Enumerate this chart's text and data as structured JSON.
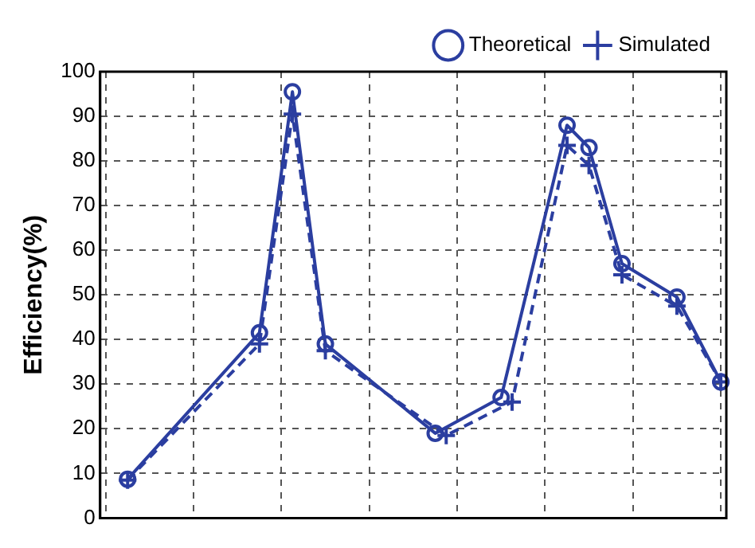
{
  "chart_data": {
    "type": "line",
    "ylabel": "Efficiency(%)",
    "categories": [
      null,
      null,
      null,
      null,
      null,
      null,
      null,
      null,
      null,
      null,
      null,
      null,
      null,
      null,
      null,
      null,
      null,
      null,
      null,
      null,
      null,
      null,
      null,
      null,
      null,
      null,
      null,
      null,
      null,
      null,
      null,
      null,
      null,
      null,
      null,
      null,
      null,
      null,
      null,
      null,
      null,
      null,
      null,
      null,
      null,
      null,
      null,
      null,
      null,
      null,
      null,
      null,
      null,
      null,
      null,
      null,
      null
    ],
    "ylim": [
      0,
      100
    ],
    "yticks": [
      0,
      10,
      20,
      30,
      40,
      50,
      60,
      70,
      80,
      90,
      100
    ],
    "tick_labels": "y",
    "grid": true,
    "legend": "top right",
    "series": [
      {
        "name": "Theoretical",
        "color": "#2b3ea0",
        "marker": "circle",
        "line_style": "solid",
        "values": [
          null,
          null,
          8.7,
          null,
          null,
          null,
          null,
          null,
          null,
          null,
          null,
          null,
          null,
          null,
          41.5,
          null,
          null,
          95.5,
          null,
          null,
          39,
          null,
          null,
          null,
          null,
          null,
          null,
          null,
          null,
          null,
          19,
          null,
          null,
          null,
          null,
          null,
          27,
          null,
          null,
          null,
          null,
          null,
          88,
          null,
          83,
          null,
          null,
          57,
          null,
          null,
          null,
          null,
          49.5,
          null,
          null,
          null,
          30.5
        ]
      },
      {
        "name": "Simulated",
        "color": "#2b3ea0",
        "marker": "cross",
        "line_style": "dashed",
        "values": [
          null,
          null,
          8.5,
          null,
          null,
          null,
          null,
          null,
          null,
          null,
          null,
          null,
          null,
          null,
          39,
          null,
          null,
          90.5,
          null,
          null,
          37.5,
          null,
          null,
          null,
          null,
          null,
          null,
          null,
          null,
          null,
          null,
          18.5,
          null,
          null,
          null,
          null,
          null,
          26,
          null,
          null,
          null,
          null,
          83.5,
          null,
          79,
          null,
          null,
          54.5,
          null,
          null,
          null,
          null,
          47.5,
          null,
          null,
          null,
          30.5
        ]
      }
    ]
  }
}
